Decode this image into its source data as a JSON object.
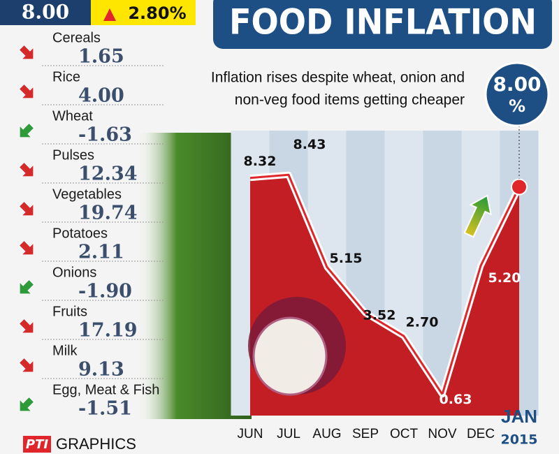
{
  "header": {
    "value": "8.00",
    "change": "2.80%",
    "title": "FOOD INFLATION",
    "subtitle_lines": [
      "Inflation rises despite wheat, onion and",
      "non-veg food items getting cheaper"
    ],
    "unit": "%"
  },
  "items": [
    {
      "name": "Cereals",
      "value": "1.65",
      "trend": "up"
    },
    {
      "name": "Rice",
      "value": "4.00",
      "trend": "up"
    },
    {
      "name": "Wheat",
      "value": "-1.63",
      "trend": "down"
    },
    {
      "name": "Pulses",
      "value": "12.34",
      "trend": "up"
    },
    {
      "name": "Vegetables",
      "value": "19.74",
      "trend": "up"
    },
    {
      "name": "Potatoes",
      "value": "2.11",
      "trend": "up"
    },
    {
      "name": "Onions",
      "value": "-1.90",
      "trend": "down"
    },
    {
      "name": "Fruits",
      "value": "17.19",
      "trend": "up"
    },
    {
      "name": "Milk",
      "value": "9.13",
      "trend": "up"
    },
    {
      "name": "Egg, Meat & Fish",
      "value": "-1.51",
      "trend": "down"
    }
  ],
  "footer": {
    "logo": "PTI",
    "text": "GRAPHICS"
  },
  "chart_data": {
    "type": "line",
    "categories": [
      "JUN",
      "JUL",
      "AUG",
      "SEP",
      "OCT",
      "NOV",
      "DEC",
      "JAN"
    ],
    "year_label": "2015",
    "values": [
      8.32,
      8.43,
      5.15,
      3.52,
      2.7,
      0.63,
      5.2,
      8.0
    ],
    "value_labels": [
      "8.32",
      "8.43",
      "5.15",
      "3.52",
      "2.70",
      "0.63",
      "5.20",
      "8.00"
    ],
    "color": "#e0262b",
    "ylim": [
      0,
      10
    ]
  }
}
